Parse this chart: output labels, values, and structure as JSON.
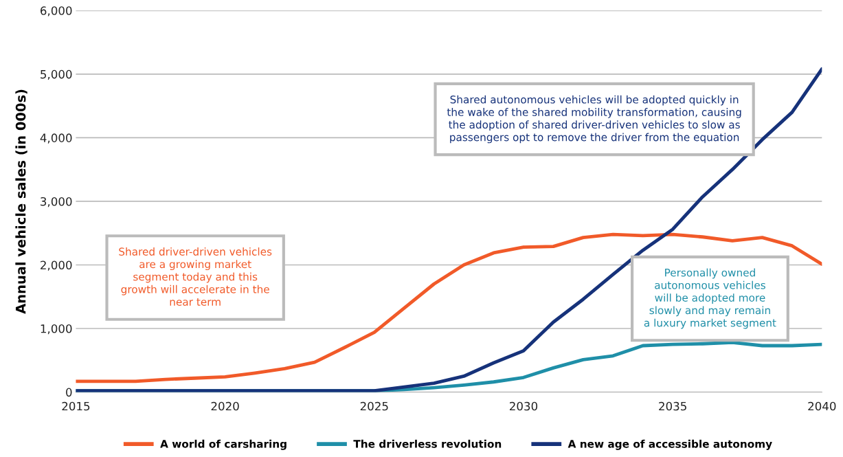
{
  "chart_data": {
    "type": "line",
    "ylabel": "Annual vehicle sales (in 000s)",
    "x": [
      2015,
      2016,
      2017,
      2018,
      2019,
      2020,
      2021,
      2022,
      2023,
      2024,
      2025,
      2026,
      2027,
      2028,
      2029,
      2030,
      2031,
      2032,
      2033,
      2034,
      2035,
      2036,
      2037,
      2038,
      2039,
      2040
    ],
    "series": [
      {
        "name": "A world of carsharing",
        "color": "#f15a29",
        "values": [
          170,
          170,
          170,
          200,
          220,
          240,
          300,
          370,
          470,
          700,
          940,
          1320,
          1700,
          2000,
          2190,
          2280,
          2290,
          2430,
          2480,
          2460,
          2480,
          2440,
          2380,
          2430,
          2300,
          2010
        ]
      },
      {
        "name": "The driverless revolution",
        "color": "#1f8fa8",
        "values": [
          20,
          20,
          20,
          20,
          20,
          20,
          20,
          20,
          20,
          20,
          20,
          40,
          70,
          110,
          160,
          230,
          380,
          510,
          570,
          730,
          750,
          760,
          780,
          730,
          730,
          750
        ]
      },
      {
        "name": "A new age of accessible autonomy",
        "color": "#16327a",
        "values": [
          20,
          20,
          20,
          20,
          20,
          20,
          20,
          20,
          20,
          20,
          20,
          80,
          140,
          250,
          460,
          650,
          1100,
          1460,
          1850,
          2230,
          2560,
          3070,
          3500,
          3970,
          4400,
          5080
        ]
      }
    ],
    "xlim": [
      2015,
      2040
    ],
    "xticks": [
      2015,
      2020,
      2025,
      2030,
      2035,
      2040
    ],
    "ylim": [
      0,
      6000
    ],
    "yticks": [
      {
        "value": 0,
        "label": "0"
      },
      {
        "value": 1000,
        "label": "1,000"
      },
      {
        "value": 2000,
        "label": "2,000"
      },
      {
        "value": 3000,
        "label": "3,000"
      },
      {
        "value": 4000,
        "label": "4,000"
      },
      {
        "value": 5000,
        "label": "5,000"
      },
      {
        "value": 6000,
        "label": "6,000"
      }
    ],
    "grid": "y",
    "legend": "bottom",
    "marker": "none",
    "line_style": "solid",
    "annotations": [
      "Shared driver-driven vehicles\nare a growing market\nsegment today and this\ngrowth will accelerate in the\nnear term",
      "Shared autonomous vehicles will be adopted quickly in\nthe wake of the shared mobility transformation, causing\nthe adoption of shared driver-driven vehicles to slow as\npassengers opt to remove the driver from the equation",
      "Personally owned\nautonomous vehicles\nwill be adopted more\nslowly and may remain\na luxury market segment"
    ]
  }
}
